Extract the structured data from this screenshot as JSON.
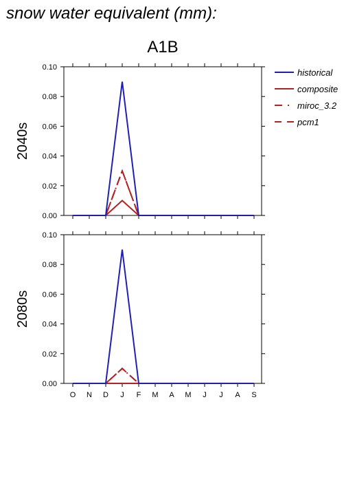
{
  "header": {
    "title": "snow water equivalent (mm):",
    "scenario": "A1B"
  },
  "colors": {
    "historical": "#1f1fb4",
    "projection": "#b22222",
    "axis": "#000000"
  },
  "chart_data": [
    {
      "type": "line",
      "row_label": "2040s",
      "categories": [
        "O",
        "N",
        "D",
        "J",
        "F",
        "M",
        "A",
        "M",
        "J",
        "J",
        "A",
        "S"
      ],
      "show_x_tick_labels": false,
      "ylim": [
        0,
        0.1
      ],
      "y_ticks": [
        "0.00",
        "0.02",
        "0.04",
        "0.06",
        "0.08",
        "0.10"
      ],
      "y_tick_values": [
        0,
        0.02,
        0.04,
        0.06,
        0.08,
        0.1
      ],
      "series": [
        {
          "name": "historical",
          "style": "solid",
          "color": "#1f1fb4",
          "values": [
            0,
            0,
            0,
            0.09,
            0,
            0,
            0,
            0,
            0,
            0,
            0,
            0
          ]
        },
        {
          "name": "composite",
          "style": "solid",
          "color": "#b22222",
          "values": [
            0,
            0,
            0,
            0.01,
            0,
            0,
            0,
            0,
            0,
            0,
            0,
            0
          ]
        },
        {
          "name": "miroc_3.2",
          "style": "dash-dot",
          "color": "#b22222",
          "values": [
            0,
            0,
            0,
            0.03,
            0,
            0,
            0,
            0,
            0,
            0,
            0,
            0
          ]
        },
        {
          "name": "pcm1",
          "style": "dashed",
          "color": "#b22222",
          "values": [
            0,
            0,
            0,
            0.03,
            0,
            0,
            0,
            0,
            0,
            0,
            0,
            0
          ]
        }
      ]
    },
    {
      "type": "line",
      "row_label": "2080s",
      "categories": [
        "O",
        "N",
        "D",
        "J",
        "F",
        "M",
        "A",
        "M",
        "J",
        "J",
        "A",
        "S"
      ],
      "show_x_tick_labels": true,
      "ylim": [
        0,
        0.1
      ],
      "y_ticks": [
        "0.00",
        "0.02",
        "0.04",
        "0.06",
        "0.08",
        "0.10"
      ],
      "y_tick_values": [
        0,
        0.02,
        0.04,
        0.06,
        0.08,
        0.1
      ],
      "series": [
        {
          "name": "historical",
          "style": "solid",
          "color": "#1f1fb4",
          "values": [
            0,
            0,
            0,
            0.09,
            0,
            0,
            0,
            0,
            0,
            0,
            0,
            0
          ]
        },
        {
          "name": "composite",
          "style": "solid",
          "color": "#b22222",
          "values": [
            0,
            0,
            0,
            0,
            0,
            0,
            0,
            0,
            0,
            0,
            0,
            0
          ]
        },
        {
          "name": "miroc_3.2",
          "style": "dash-dot",
          "color": "#b22222",
          "values": [
            0,
            0,
            0,
            0.01,
            0,
            0,
            0,
            0,
            0,
            0,
            0,
            0
          ]
        },
        {
          "name": "pcm1",
          "style": "dashed",
          "color": "#b22222",
          "values": [
            0,
            0,
            0,
            0.01,
            0,
            0,
            0,
            0,
            0,
            0,
            0,
            0
          ]
        }
      ]
    }
  ],
  "legend": {
    "placement": "right",
    "entries": [
      {
        "name": "historical",
        "style": "solid",
        "color": "#1f1fb4"
      },
      {
        "name": "composite",
        "style": "solid",
        "color": "#b22222"
      },
      {
        "name": "miroc_3.2",
        "style": "dash-dot",
        "color": "#b22222"
      },
      {
        "name": "pcm1",
        "style": "dashed",
        "color": "#b22222"
      }
    ]
  }
}
